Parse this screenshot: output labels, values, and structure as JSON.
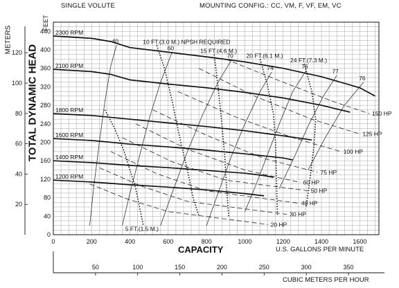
{
  "header": {
    "left": "SINGLE VOLUTE",
    "right": "MOUNTING CONFIG.:  CC,  VM,  F,  VF,  EM,  VC"
  },
  "axes": {
    "ylabel_left": "METERS",
    "ylabel_main": "TOTAL DYNAMIC HEAD",
    "ylabel_inner": "FEET",
    "xlabel": "CAPACITY",
    "xunit": "U.S. GALLONS PER MINUTE",
    "x2unit": "CUBIC METERS PER HOUR"
  },
  "chart_data": {
    "type": "line",
    "x_unit": "U.S. GALLONS PER MINUTE",
    "y_unit": "FEET",
    "xlim": [
      0,
      1700
    ],
    "ylim": [
      0,
      460
    ],
    "xticks": [
      0,
      200,
      400,
      600,
      800,
      1000,
      1200,
      1400,
      1600
    ],
    "yticks": [
      0,
      40,
      80,
      120,
      160,
      200,
      240,
      280,
      320,
      360,
      400,
      440
    ],
    "y2_unit": "METERS",
    "y2ticks": [
      20,
      40,
      60,
      80,
      100,
      120
    ],
    "x2_unit": "CUBIC METERS PER HOUR",
    "x2ticks": [
      50,
      100,
      150,
      200,
      250,
      300,
      350
    ],
    "grid": true,
    "rpm_curves": [
      {
        "name": "2300 RPM",
        "x": [
          0,
          200,
          300,
          400,
          600,
          800,
          1000,
          1200,
          1400,
          1600,
          1680
        ],
        "y": [
          430,
          425,
          418,
          405,
          395,
          385,
          374,
          360,
          342,
          318,
          300
        ]
      },
      {
        "name": "2100 RPM",
        "x": [
          0,
          200,
          300,
          400,
          600,
          800,
          1000,
          1200,
          1400,
          1550
        ],
        "y": [
          358,
          353,
          347,
          335,
          326,
          318,
          308,
          296,
          280,
          265
        ]
      },
      {
        "name": "1800 RPM",
        "x": [
          0,
          200,
          400,
          600,
          800,
          1000,
          1200,
          1350
        ],
        "y": [
          262,
          258,
          250,
          242,
          234,
          225,
          214,
          205
        ]
      },
      {
        "name": "1600 RPM",
        "x": [
          0,
          200,
          400,
          600,
          800,
          1000,
          1200,
          1250
        ],
        "y": [
          208,
          204,
          196,
          190,
          183,
          175,
          166,
          162
        ]
      },
      {
        "name": "1400 RPM",
        "x": [
          0,
          200,
          400,
          600,
          800,
          1000,
          1100,
          1150
        ],
        "y": [
          160,
          156,
          150,
          145,
          139,
          133,
          128,
          124
        ]
      },
      {
        "name": "1200 RPM",
        "x": [
          0,
          200,
          400,
          600,
          800,
          1000,
          1100
        ],
        "y": [
          118,
          114,
          108,
          103,
          97,
          89,
          84
        ]
      }
    ],
    "efficiency_curves": [
      {
        "name": "40",
        "x": [
          190,
          210,
          240,
          270,
          300,
          330
        ],
        "y": [
          20,
          100,
          200,
          290,
          365,
          410
        ]
      },
      {
        "name": "60",
        "x": [
          360,
          400,
          450,
          500,
          560,
          620
        ],
        "y": [
          20,
          90,
          170,
          250,
          330,
          395
        ]
      },
      {
        "name": "70",
        "x": [
          560,
          620,
          700,
          780,
          860,
          930
        ],
        "y": [
          20,
          90,
          180,
          260,
          330,
          378
        ]
      },
      {
        "name": "74",
        "x": [
          800,
          860,
          930,
          1000,
          1080,
          1140
        ],
        "y": [
          20,
          90,
          170,
          240,
          310,
          352
        ]
      },
      {
        "name": "76",
        "x": [
          1000,
          1060,
          1120,
          1180,
          1250,
          1320
        ],
        "y": [
          50,
          110,
          175,
          240,
          310,
          355
        ]
      },
      {
        "name": "77",
        "x": [
          1180,
          1260,
          1330,
          1410,
          1480
        ],
        "y": [
          100,
          170,
          235,
          300,
          345
        ]
      },
      {
        "name": "76",
        "x": [
          1330,
          1420,
          1520,
          1620
        ],
        "y": [
          140,
          210,
          280,
          330
        ]
      }
    ],
    "horsepower_curves": [
      {
        "name": "150 HP",
        "x": [
          900,
          1200,
          1450,
          1650
        ],
        "y": [
          380,
          330,
          290,
          262
        ]
      },
      {
        "name": "125 HP",
        "x": [
          760,
          1050,
          1350,
          1600
        ],
        "y": [
          360,
          300,
          250,
          218
        ]
      },
      {
        "name": "100 HP",
        "x": [
          650,
          950,
          1250,
          1500
        ],
        "y": [
          310,
          255,
          210,
          180
        ]
      },
      {
        "name": "75 HP",
        "x": [
          520,
          800,
          1100,
          1380
        ],
        "y": [
          270,
          215,
          165,
          135
        ]
      },
      {
        "name": "60 HP",
        "x": [
          430,
          700,
          1000,
          1290
        ],
        "y": [
          240,
          185,
          140,
          113
        ]
      },
      {
        "name": "50 HP",
        "x": [
          360,
          620,
          900,
          1330
        ],
        "y": [
          210,
          158,
          118,
          95
        ]
      },
      {
        "name": "40 HP",
        "x": [
          300,
          540,
          800,
          1280
        ],
        "y": [
          180,
          132,
          95,
          68
        ]
      },
      {
        "name": "30 HP",
        "x": [
          240,
          460,
          700,
          1220
        ],
        "y": [
          145,
          105,
          72,
          44
        ]
      },
      {
        "name": "20 HP",
        "x": [
          190,
          380,
          600,
          1120
        ],
        "y": [
          110,
          78,
          50,
          22
        ]
      }
    ],
    "npsh_curves": [
      {
        "name": "5 FT.(1.5 M.)",
        "x": [
          270,
          320,
          370,
          400,
          430,
          450,
          470
        ],
        "y": [
          270,
          230,
          180,
          140,
          100,
          60,
          20
        ]
      },
      {
        "name": "10 FT.(3.0 M.) NPSH REQUIRED",
        "x": [
          540,
          580,
          620,
          660,
          700,
          730,
          760
        ],
        "y": [
          410,
          360,
          290,
          210,
          140,
          80,
          40
        ]
      },
      {
        "name": "15 FT.(4.6 M.)",
        "x": [
          840,
          860,
          880,
          895,
          905,
          915
        ],
        "y": [
          390,
          320,
          240,
          170,
          100,
          40
        ]
      },
      {
        "name": "20 FT.(6.1 M.)",
        "x": [
          1080,
          1120,
          1150,
          1160,
          1165,
          1170
        ],
        "y": [
          380,
          320,
          260,
          200,
          120,
          40
        ]
      },
      {
        "name": "24 FT.(7.3 M.)",
        "x": [
          1310,
          1350,
          1370,
          1360,
          1340,
          1320
        ],
        "y": [
          370,
          310,
          250,
          190,
          120,
          60
        ]
      }
    ]
  }
}
